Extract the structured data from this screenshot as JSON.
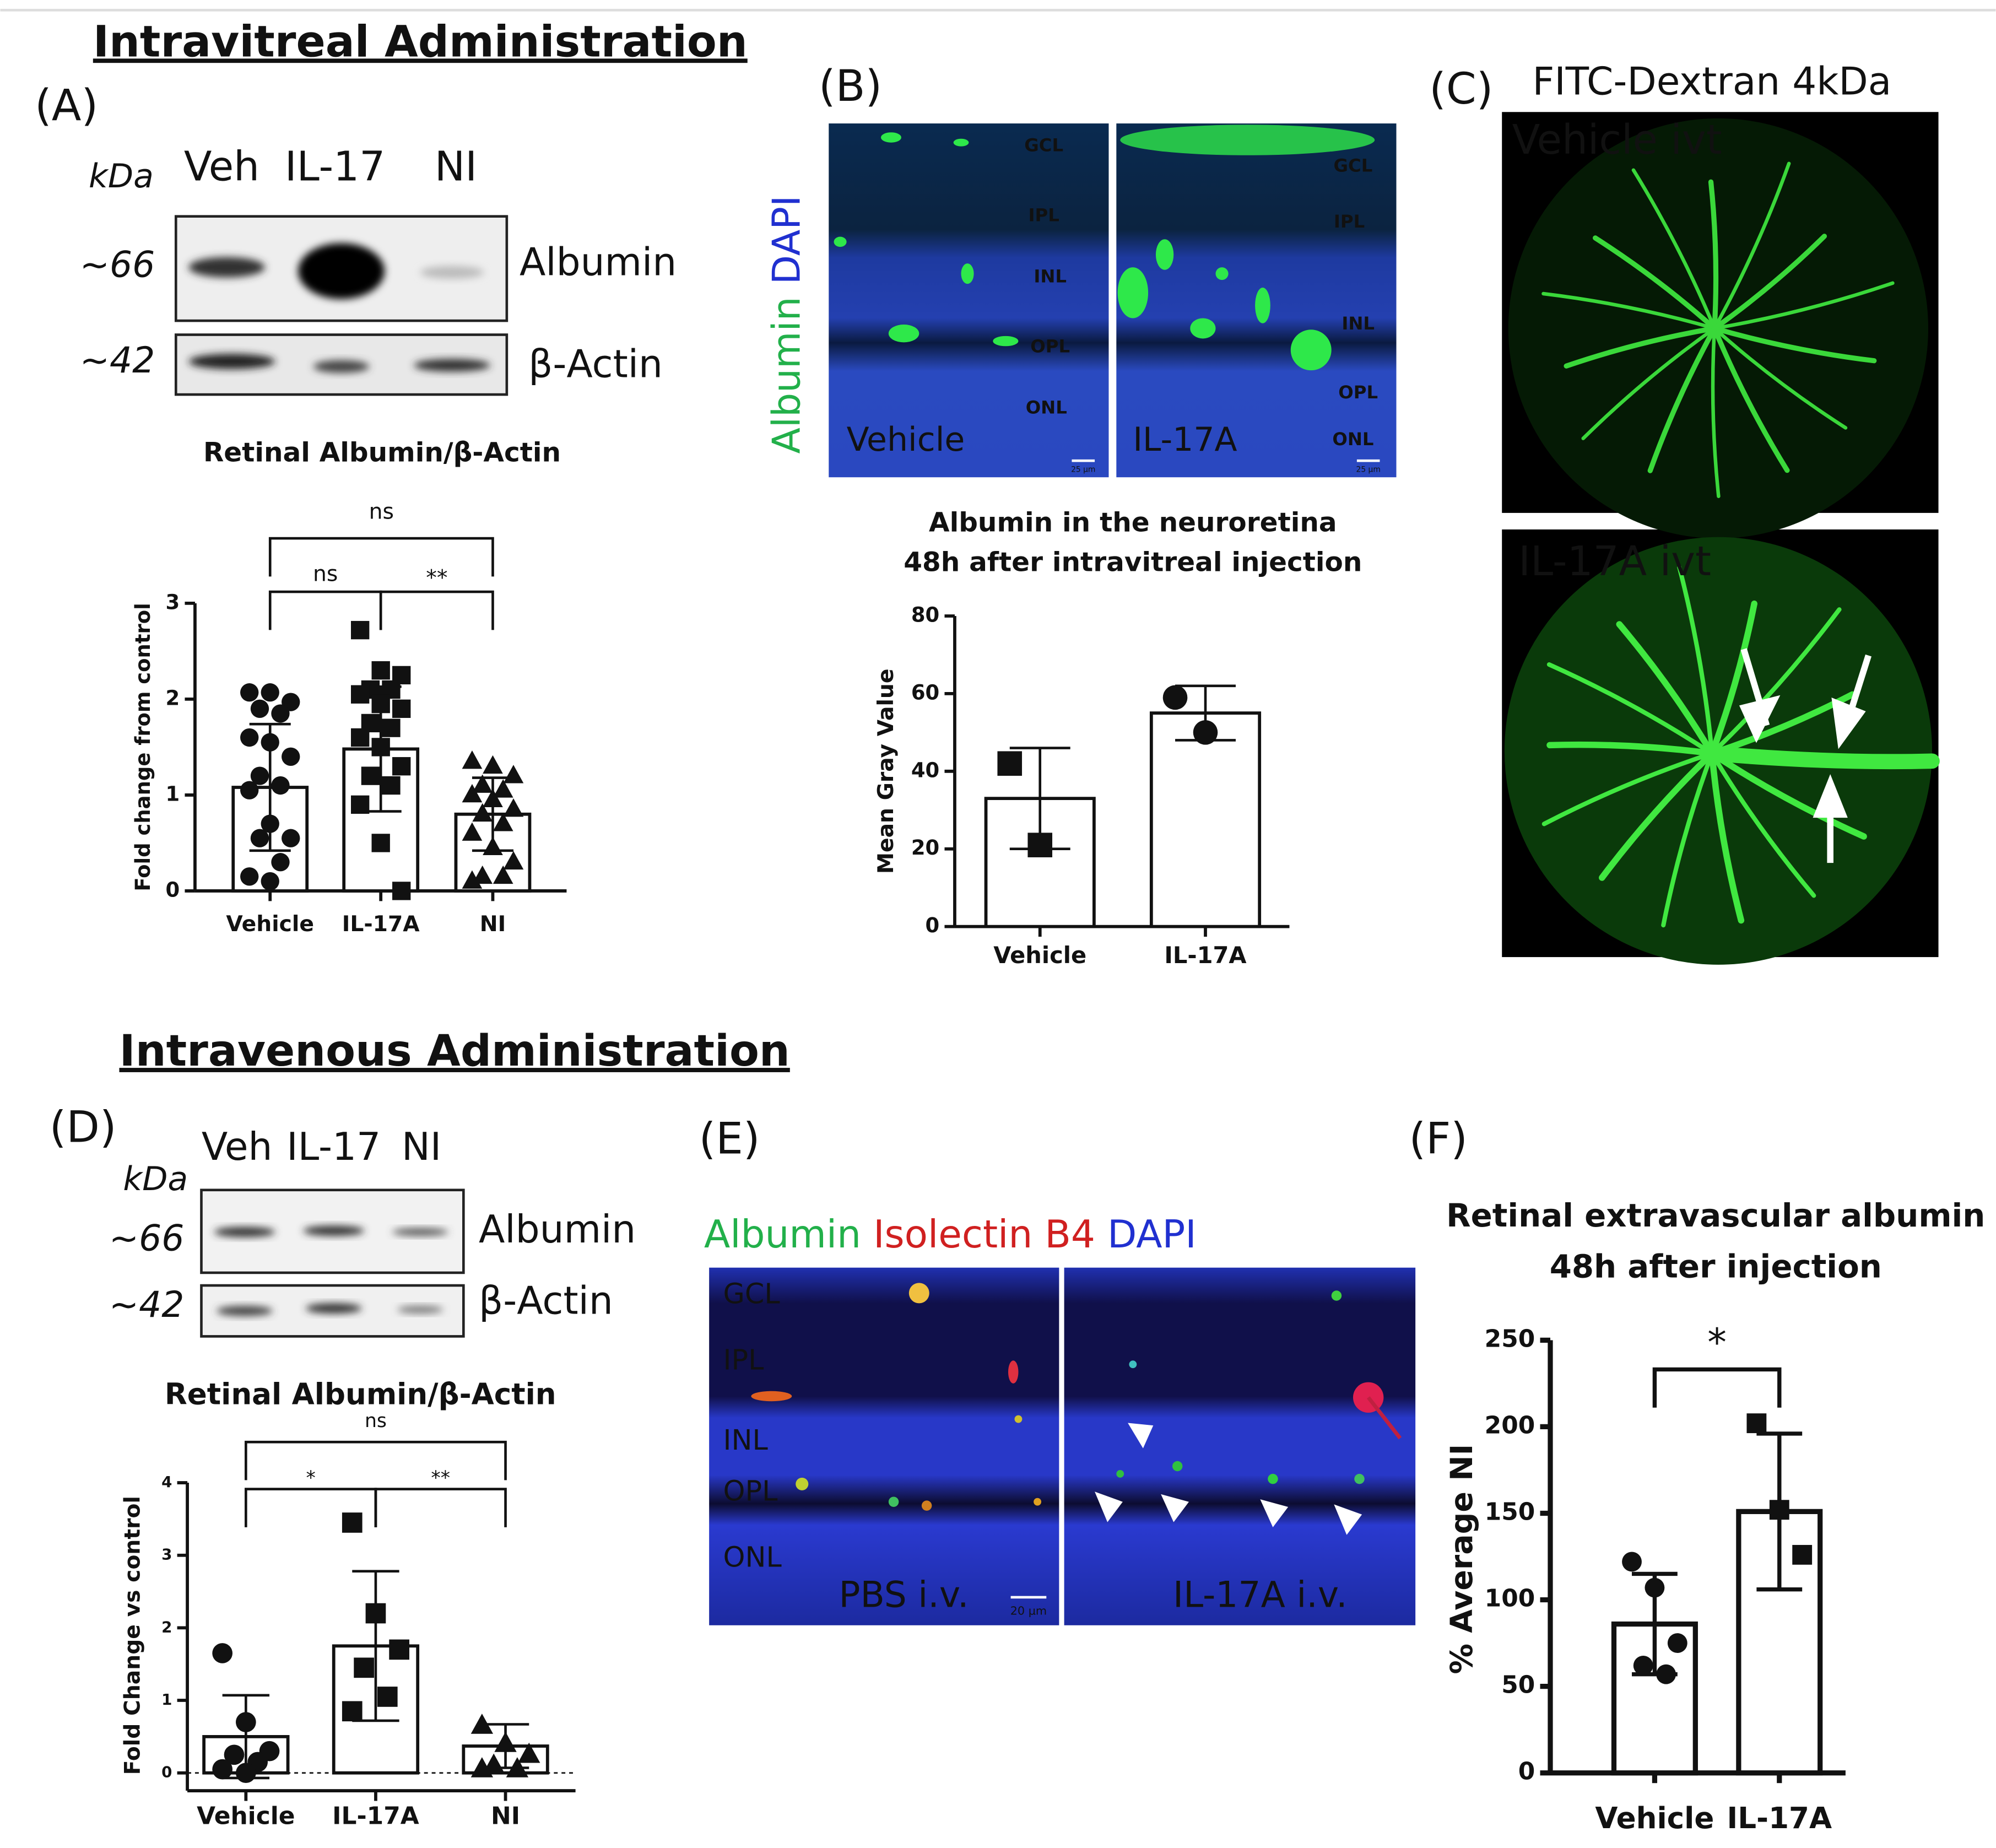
{
  "figure": {
    "heading_ivt": "Intravitreal Administration",
    "heading_iv": "Intravenous Administration",
    "panel_labels": [
      "(A)",
      "(B)",
      "(C)",
      "(D)",
      "(E)",
      "(F)"
    ],
    "blot_a": {
      "unit": "kDa",
      "lanes": [
        "Veh",
        "IL-17",
        "NI"
      ],
      "sizes": [
        "~66",
        "~42"
      ],
      "bands": [
        "Albumin",
        "β-Actin"
      ]
    },
    "blot_d": {
      "unit": "kDa",
      "lanes": [
        "Veh",
        "IL-17",
        "NI"
      ],
      "sizes": [
        "~66",
        "~42"
      ],
      "bands": [
        "Albumin",
        "β-Actin"
      ]
    },
    "micro_b": {
      "stain": [
        "Albumin",
        "DAPI"
      ],
      "panels": [
        "Vehicle",
        "IL-17A"
      ],
      "layers_left": [
        "GCL",
        "IPL",
        "INL",
        "OPL",
        "ONL"
      ],
      "layers_right": [
        "GCL",
        "IPL",
        "INL",
        "OPL",
        "ONL"
      ],
      "scale": "25 µm"
    },
    "fundus_c": {
      "title": "FITC-Dextran 4kDa",
      "panels": [
        "Vehicle ivt",
        "IL-17A ivt"
      ]
    },
    "micro_e": {
      "stain": [
        "Albumin",
        "Isolectin B4",
        "DAPI"
      ],
      "layers": [
        "GCL",
        "IPL",
        "INL",
        "OPL",
        "ONL"
      ],
      "panels": [
        "PBS i.v.",
        "IL-17A i.v."
      ],
      "scale": "20 µm"
    }
  },
  "chart_data": [
    {
      "type": "bar",
      "title": [
        "Retinal Albumin/β-Actin"
      ],
      "y_label": "Fold change from control",
      "categories": [
        "Vehicle",
        "IL-17A",
        "NI"
      ],
      "values": [
        1.08,
        1.48,
        0.8
      ],
      "errors": [
        0.66,
        0.65,
        0.38
      ],
      "points": [
        [
          2.07,
          2.07,
          1.97,
          1.9,
          1.85,
          1.6,
          1.55,
          1.4,
          1.2,
          1.1,
          1.05,
          0.7,
          0.55,
          0.55,
          0.3,
          0.15,
          0.1
        ],
        [
          2.72,
          2.3,
          2.25,
          2.1,
          2.1,
          2.05,
          1.95,
          1.9,
          1.75,
          1.7,
          1.6,
          1.5,
          1.3,
          1.2,
          1.1,
          0.9,
          0.5,
          0.0
        ],
        [
          1.35,
          1.3,
          1.2,
          1.1,
          1.05,
          1.0,
          0.95,
          0.85,
          0.8,
          0.7,
          0.6,
          0.45,
          0.3,
          0.15,
          0.15,
          0.1
        ]
      ],
      "markers": [
        "circle",
        "square",
        "triangle"
      ],
      "annotations": [
        "ns",
        "ns",
        "**"
      ],
      "ylim": [
        0,
        3
      ],
      "yticks": [
        0,
        1,
        2,
        3
      ],
      "color": "#ffffff"
    },
    {
      "type": "bar",
      "title": [
        "Albumin in the neuroretina",
        "48h after intravitreal injection"
      ],
      "y_label": "Mean Gray Value",
      "categories": [
        "Vehicle",
        "IL-17A"
      ],
      "values": [
        33,
        55
      ],
      "errors": [
        13,
        7
      ],
      "points": [
        [
          42,
          21
        ],
        [
          59,
          50
        ]
      ],
      "markers": [
        "square",
        "circle"
      ],
      "annotations": [],
      "ylim": [
        0,
        80
      ],
      "yticks": [
        0,
        20,
        40,
        60,
        80
      ],
      "color": "#ffffff"
    },
    {
      "type": "bar",
      "title": [
        "Retinal Albumin/β-Actin"
      ],
      "y_label": "Fold Change vs control",
      "categories": [
        "Vehicle",
        "IL-17A",
        "NI"
      ],
      "values": [
        0.5,
        1.75,
        0.37
      ],
      "errors": [
        0.57,
        1.03,
        0.3
      ],
      "points": [
        [
          1.65,
          0.7,
          0.3,
          0.25,
          0.15,
          0.05,
          0.0
        ],
        [
          3.45,
          2.2,
          1.7,
          1.45,
          1.05,
          0.85
        ],
        [
          0.65,
          0.4,
          0.25,
          0.1,
          0.05,
          0.05
        ]
      ],
      "markers": [
        "circle",
        "square",
        "triangle"
      ],
      "annotations": [
        "ns",
        "*",
        "**"
      ],
      "ylim": [
        0,
        4
      ],
      "yticks": [
        0,
        1,
        2,
        3,
        4
      ],
      "color": "#ffffff"
    },
    {
      "type": "bar",
      "title": [
        "Retinal extravascular albumin",
        "48h after injection"
      ],
      "y_label": "% Average NI",
      "categories": [
        "Vehicle",
        "IL-17A"
      ],
      "values": [
        86,
        151
      ],
      "errors": [
        29,
        45
      ],
      "points": [
        [
          122,
          107,
          75,
          62,
          57
        ],
        [
          202,
          152,
          126
        ]
      ],
      "markers": [
        "circle",
        "square"
      ],
      "annotations": [
        "*"
      ],
      "ylim": [
        0,
        250
      ],
      "yticks": [
        0,
        50,
        100,
        150,
        200,
        250
      ],
      "color": "#ffffff"
    }
  ]
}
